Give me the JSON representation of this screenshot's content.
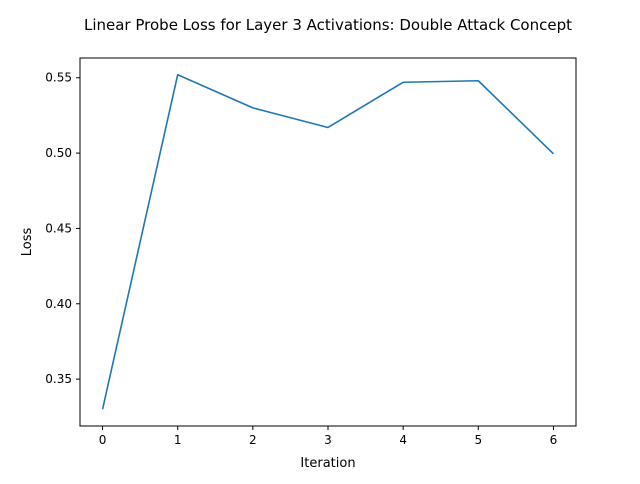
{
  "chart_data": {
    "type": "line",
    "title": "Linear Probe Loss for Layer 3 Activations: Double Attack Concept",
    "xlabel": "Iteration",
    "ylabel": "Loss",
    "x": [
      0,
      1,
      2,
      3,
      4,
      5,
      6
    ],
    "series": [
      {
        "values": [
          0.33,
          0.552,
          0.53,
          0.517,
          0.547,
          0.548,
          0.4995
        ],
        "color": "#1f77b4"
      }
    ],
    "xlim": [
      -0.3,
      6.3
    ],
    "ylim": [
      0.3189,
      0.5631
    ],
    "xticks": [
      0,
      1,
      2,
      3,
      4,
      5,
      6
    ],
    "yticks": [
      0.35,
      0.4,
      0.45,
      0.5,
      0.55
    ],
    "ytick_labels": [
      "0.35",
      "0.40",
      "0.45",
      "0.50",
      "0.55"
    ],
    "grid": false,
    "legend": "none"
  }
}
